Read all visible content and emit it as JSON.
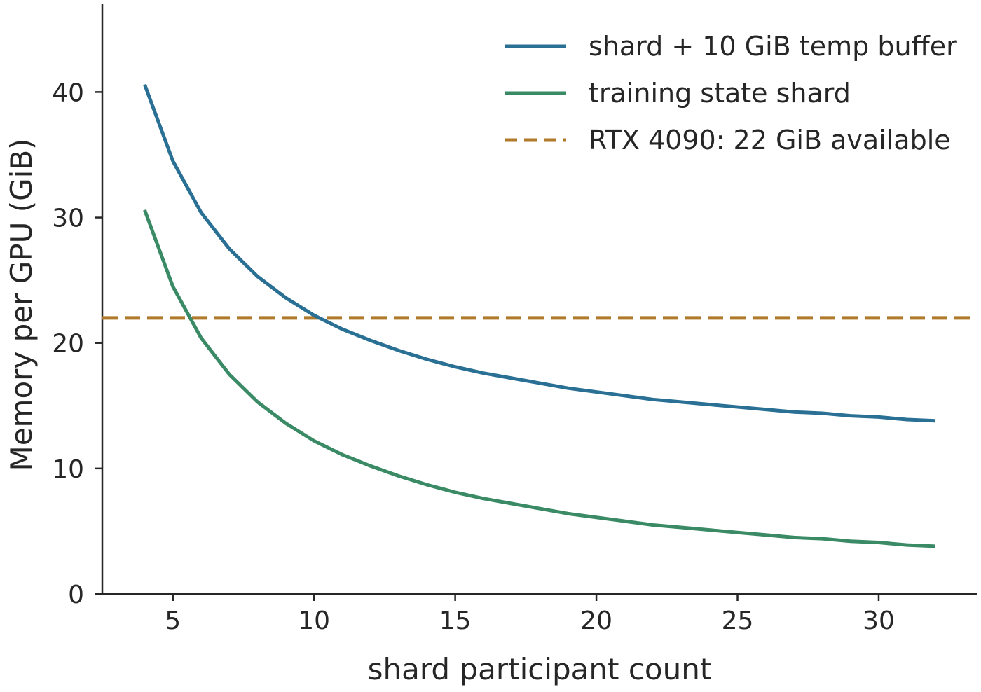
{
  "chart_data": {
    "type": "line",
    "title": "",
    "xlabel": "shard participant count",
    "ylabel": "Memory per GPU (GiB)",
    "xlim": [
      2.5,
      33.5
    ],
    "ylim": [
      0,
      47
    ],
    "xticks": [
      5,
      10,
      15,
      20,
      25,
      30
    ],
    "yticks": [
      0,
      10,
      20,
      30,
      40
    ],
    "grid": false,
    "legend_position": "top-right",
    "x": [
      4,
      5,
      6,
      7,
      8,
      9,
      10,
      11,
      12,
      13,
      14,
      15,
      16,
      17,
      18,
      19,
      20,
      21,
      22,
      23,
      24,
      25,
      26,
      27,
      28,
      29,
      30,
      31,
      32
    ],
    "series": [
      {
        "name": "shard + 10 GiB temp buffer",
        "color": "#2a7095",
        "style": "solid",
        "values": [
          40.6,
          34.5,
          30.4,
          27.5,
          25.3,
          23.6,
          22.2,
          21.1,
          20.2,
          19.4,
          18.7,
          18.1,
          17.6,
          17.2,
          16.8,
          16.4,
          16.1,
          15.8,
          15.5,
          15.3,
          15.1,
          14.9,
          14.7,
          14.5,
          14.4,
          14.2,
          14.1,
          13.9,
          13.8
        ]
      },
      {
        "name": "training state shard",
        "color": "#3a8a66",
        "style": "solid",
        "values": [
          30.6,
          24.5,
          20.4,
          17.5,
          15.3,
          13.6,
          12.2,
          11.1,
          10.2,
          9.4,
          8.7,
          8.1,
          7.6,
          7.2,
          6.8,
          6.4,
          6.1,
          5.8,
          5.5,
          5.3,
          5.1,
          4.9,
          4.7,
          4.5,
          4.4,
          4.2,
          4.1,
          3.9,
          3.8
        ]
      }
    ],
    "reference_lines": [
      {
        "name": "RTX 4090: 22 GiB available",
        "y": 22,
        "color": "#b07a2a",
        "style": "dashed"
      }
    ]
  }
}
